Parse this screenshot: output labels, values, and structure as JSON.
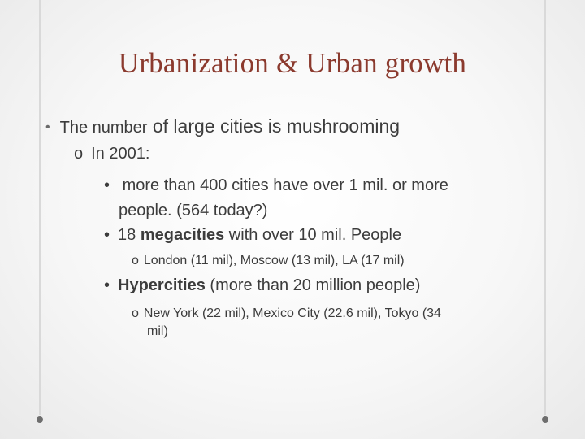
{
  "slide": {
    "title": "Urbanization & Urban growth",
    "bullet1": {
      "marker": "•",
      "text_small": "The number",
      "text_large": " of large cities is mushrooming"
    },
    "bullet2": {
      "marker": "o",
      "text": "In 2001:"
    },
    "bullet3": {
      "marker": "•",
      "line1": " more than 400 cities have over 1 mil. or more",
      "line2": "people. (564 today?)"
    },
    "bullet4": {
      "marker": "•",
      "pre": "18 ",
      "bold": "megacities",
      "post": " with over 10 mil. People"
    },
    "bullet5": {
      "marker": "o",
      "text": "London (11 mil),  Moscow (13 mil), LA (17 mil)"
    },
    "bullet6": {
      "marker": "•",
      "bold": "Hypercities",
      "post": " (more than 20 million people)"
    },
    "bullet7": {
      "marker": "o",
      "line1": "New York (22 mil), Mexico City (22.6 mil), Tokyo (34",
      "line2": "mil)"
    }
  },
  "colors": {
    "title": "#8b3a2e",
    "text": "#3c3c3c",
    "background": "#f7f7f7"
  }
}
